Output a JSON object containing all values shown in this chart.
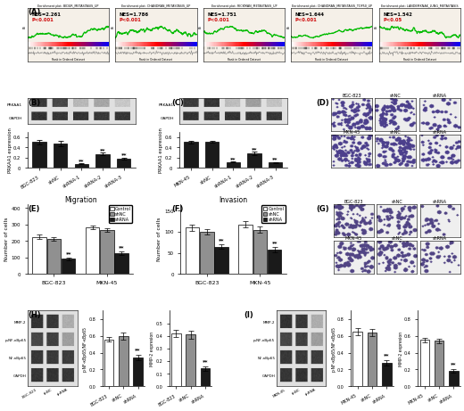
{
  "panel_A": {
    "gsea_plots": [
      {
        "nes": "NES=2.261",
        "p": "P<0.001",
        "title": "Enrichment plot: BIDUR_METASTASIS_UP"
      },
      {
        "nes": "NES=1.786",
        "p": "P<0.001",
        "title": "Enrichment plot: CHANDRAN_METASTASIS_UP"
      },
      {
        "nes": "NES=1.751",
        "p": "P<0.001",
        "title": "Enrichment plot: RICKMAN_METASTASIS_UP"
      },
      {
        "nes": "NES=1.644",
        "p": "P<0.001",
        "title": "Enrichment plot: CHANDRAN_METASTASIS_TOP50_UP"
      },
      {
        "nes": "NES=1.542",
        "p": "P<0.05",
        "title": "Enrichment plot: LANDEMKNAK_LUNG_METASTASIS"
      }
    ]
  },
  "panel_B": {
    "categories": [
      "BGC-823",
      "shNC",
      "shRNA-1",
      "shRNA-2",
      "shRNA-3"
    ],
    "values": [
      0.5,
      0.47,
      0.08,
      0.27,
      0.18
    ],
    "errors": [
      0.04,
      0.05,
      0.01,
      0.03,
      0.02
    ],
    "ylabel": "PRKAA1 expression",
    "ylim": [
      0,
      0.7
    ],
    "yticks": [
      0.0,
      0.2,
      0.4,
      0.6
    ],
    "sig": [
      false,
      false,
      true,
      true,
      true
    ]
  },
  "panel_C": {
    "categories": [
      "MKN-45",
      "shNC",
      "shRNA-1",
      "shRNA-2",
      "shRNA-3"
    ],
    "values": [
      0.5,
      0.51,
      0.11,
      0.28,
      0.1
    ],
    "errors": [
      0.03,
      0.02,
      0.01,
      0.03,
      0.01
    ],
    "ylabel": "PRKAA1 expression",
    "ylim": [
      0,
      0.7
    ],
    "yticks": [
      0.0,
      0.2,
      0.4,
      0.6
    ],
    "sig": [
      false,
      false,
      true,
      true,
      true
    ]
  },
  "panel_E": {
    "title": "Migration",
    "groups": [
      "BGC-823",
      "MKN-45"
    ],
    "control": [
      225,
      280
    ],
    "shNC": [
      210,
      265
    ],
    "shRNA": [
      90,
      125
    ],
    "errors_control": [
      12,
      10
    ],
    "errors_shNC": [
      10,
      12
    ],
    "errors_shRNA": [
      8,
      10
    ],
    "ylabel": "Number of cells",
    "ylim": [
      0,
      420
    ],
    "yticks": [
      0,
      100,
      200,
      300,
      400
    ],
    "sig_shRNA": [
      true,
      true
    ]
  },
  "panel_F": {
    "title": "Invasion",
    "groups": [
      "BGC-823",
      "MKN-45"
    ],
    "control": [
      110,
      118
    ],
    "shNC": [
      100,
      105
    ],
    "shRNA": [
      65,
      58
    ],
    "errors_control": [
      8,
      7
    ],
    "errors_shNC": [
      7,
      8
    ],
    "errors_shRNA": [
      5,
      6
    ],
    "ylabel": "Number of cells",
    "ylim": [
      0,
      165
    ],
    "yticks": [
      0,
      50,
      100,
      150
    ],
    "sig_shRNA": [
      true,
      true
    ]
  },
  "panel_H_left": {
    "categories": [
      "BGC-823",
      "shNC",
      "shRNA"
    ],
    "values": [
      0.56,
      0.6,
      0.34
    ],
    "errors": [
      0.03,
      0.04,
      0.03
    ],
    "ylabel": "p-NF-κBp65/NF-κBp65",
    "ylim": [
      0,
      0.9
    ],
    "yticks": [
      0.0,
      0.2,
      0.4,
      0.6,
      0.8
    ],
    "sig": [
      false,
      false,
      true
    ]
  },
  "panel_H_right": {
    "categories": [
      "BGC-823",
      "shNC",
      "shRNA"
    ],
    "values": [
      0.42,
      0.41,
      0.14
    ],
    "errors": [
      0.03,
      0.03,
      0.02
    ],
    "ylabel": "MMP-2 expresion",
    "ylim": [
      0,
      0.6
    ],
    "yticks": [
      0.0,
      0.1,
      0.2,
      0.3,
      0.4,
      0.5
    ],
    "sig": [
      false,
      false,
      true
    ]
  },
  "panel_I_left": {
    "categories": [
      "MKN-45",
      "shNC",
      "shRNA"
    ],
    "values": [
      0.65,
      0.64,
      0.28
    ],
    "errors": [
      0.04,
      0.04,
      0.03
    ],
    "ylabel": "p-NF-κBp65/NF-κBp65",
    "ylim": [
      0,
      0.9
    ],
    "yticks": [
      0.0,
      0.2,
      0.4,
      0.6,
      0.8
    ],
    "sig": [
      false,
      false,
      true
    ]
  },
  "panel_I_right": {
    "categories": [
      "MKN-45",
      "shNC",
      "shRNA"
    ],
    "values": [
      0.55,
      0.54,
      0.18
    ],
    "errors": [
      0.03,
      0.03,
      0.02
    ],
    "ylabel": "MMP-2 expresion",
    "ylim": [
      0,
      0.9
    ],
    "yticks": [
      0.0,
      0.2,
      0.4,
      0.6,
      0.8
    ],
    "sig": [
      false,
      false,
      true
    ]
  },
  "bar_color_white": "#ffffff",
  "bar_color_gray": "#909090",
  "bar_color_black": "#1a1a1a",
  "bar_edge": "#000000",
  "sig_text": "**",
  "fig_bg": "#ffffff"
}
